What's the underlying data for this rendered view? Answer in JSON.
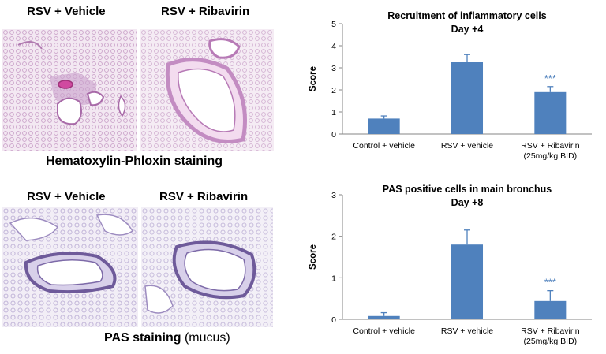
{
  "panels": {
    "he_left_label": "RSV + Vehicle",
    "he_right_label": "RSV + Ribavirin",
    "he_caption": "Hematoxylin-Phloxin staining",
    "pas_left_label": "RSV + Vehicle",
    "pas_right_label": "RSV + Ribavirin",
    "pas_caption_bold": "PAS staining",
    "pas_caption_rest": " (mucus)"
  },
  "colors": {
    "bar": "#4f81bd",
    "error_bar": "#4f81bd",
    "significance": "#4f81bd",
    "axis": "#868686",
    "tissue_he": "#c58fc4",
    "tissue_pas": "#a99ac6"
  },
  "chart_data": [
    {
      "type": "bar",
      "title": "Recruitment of inflammatory cells",
      "subtitle": "Day +4",
      "ylabel": "Score",
      "ylim": [
        0,
        5
      ],
      "yticks": [
        "0",
        "1",
        "2",
        "3",
        "4",
        "5"
      ],
      "categories": [
        "Control + vehicle",
        "RSV + vehicle",
        "RSV + Ribavirin\n(25mg/kg BID)"
      ],
      "values": [
        0.7,
        3.25,
        1.9
      ],
      "errors": [
        0.12,
        0.35,
        0.25
      ],
      "annotations": [
        "",
        "",
        "***"
      ],
      "grid": false
    },
    {
      "type": "bar",
      "title": "PAS positive cells in main bronchus",
      "subtitle": "Day +8",
      "ylabel": "Score",
      "ylim": [
        0,
        3
      ],
      "yticks": [
        "0",
        "1",
        "2",
        "3"
      ],
      "categories": [
        "Control + vehicle",
        "RSV + vehicle",
        "RSV + Ribavirin\n(25mg/kg BID)"
      ],
      "values": [
        0.08,
        1.8,
        0.44
      ],
      "errors": [
        0.08,
        0.35,
        0.25
      ],
      "annotations": [
        "",
        "",
        "***"
      ],
      "grid": false
    }
  ]
}
